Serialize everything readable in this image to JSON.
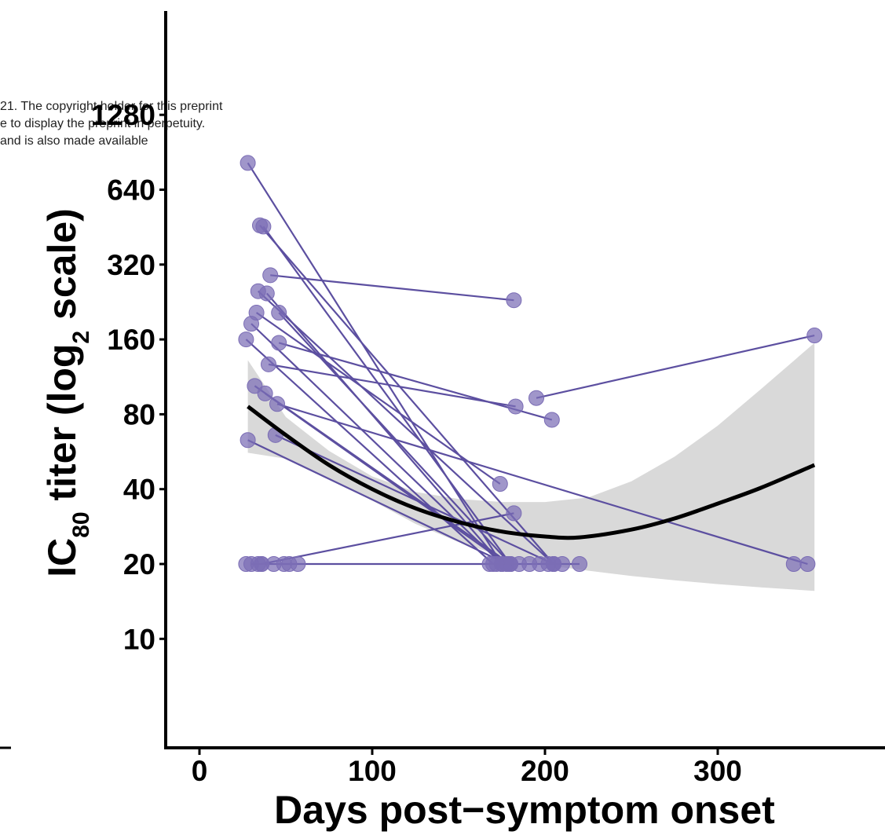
{
  "chart_data": {
    "type": "scatter",
    "xlabel": "Days post−symptom onset",
    "ylabel": {
      "prefix": "IC",
      "prefix_sub": "80",
      "middle": " titer (log",
      "middle_sub": "2",
      "suffix": " scale)"
    },
    "x_scale": "linear",
    "y_scale": "log2",
    "xlim": [
      -20,
      395
    ],
    "ylim": [
      5,
      1500
    ],
    "x_ticks": [
      0,
      100,
      200,
      300
    ],
    "y_ticks": [
      10,
      20,
      40,
      80,
      160,
      320,
      640,
      1280
    ],
    "x_tick_labels": [
      "0",
      "100",
      "200",
      "300"
    ],
    "y_tick_labels": [
      "10",
      "20",
      "40",
      "80",
      "160",
      "320",
      "640",
      "1280"
    ],
    "grid": false,
    "colors": {
      "points": "#7b6db5",
      "lines": "#5c4fa0",
      "fit": "#000000",
      "ribbon": "#d9d9d9"
    },
    "pairs": [
      [
        [
          28,
          820
        ],
        [
          175,
          20
        ]
      ],
      [
        [
          35,
          460
        ],
        [
          205,
          20
        ]
      ],
      [
        [
          37,
          455
        ],
        [
          180,
          20
        ]
      ],
      [
        [
          41,
          290
        ],
        [
          182,
          230
        ]
      ],
      [
        [
          34,
          250
        ],
        [
          205,
          20
        ]
      ],
      [
        [
          39,
          245
        ],
        [
          175,
          20
        ]
      ],
      [
        [
          30,
          185
        ],
        [
          175,
          20
        ]
      ],
      [
        [
          33,
          205
        ],
        [
          174,
          42
        ]
      ],
      [
        [
          46,
          205
        ],
        [
          180,
          20
        ]
      ],
      [
        [
          27,
          160
        ],
        [
          170,
          20
        ]
      ],
      [
        [
          46,
          155
        ],
        [
          204,
          76
        ]
      ],
      [
        [
          40,
          127
        ],
        [
          183,
          86
        ]
      ],
      [
        [
          32,
          104
        ],
        [
          180,
          20
        ]
      ],
      [
        [
          38,
          97
        ],
        [
          178,
          20
        ]
      ],
      [
        [
          45,
          88
        ],
        [
          352,
          20
        ]
      ],
      [
        [
          28,
          63
        ],
        [
          178,
          20
        ]
      ],
      [
        [
          44,
          66
        ],
        [
          205,
          20
        ]
      ],
      [
        [
          36,
          20
        ],
        [
          182,
          32
        ]
      ],
      [
        [
          30,
          20
        ],
        [
          220,
          20
        ]
      ],
      [
        [
          195,
          93
        ],
        [
          356,
          166
        ]
      ]
    ],
    "extra_points": [
      [
        27,
        20
      ],
      [
        34,
        20
      ],
      [
        36,
        20
      ],
      [
        43,
        20
      ],
      [
        49,
        20
      ],
      [
        52,
        20
      ],
      [
        57,
        20
      ],
      [
        168,
        20
      ],
      [
        172,
        20
      ],
      [
        185,
        20
      ],
      [
        191,
        20
      ],
      [
        197,
        20
      ],
      [
        202,
        20
      ],
      [
        210,
        20
      ],
      [
        344,
        20
      ]
    ],
    "fit_curve": {
      "x": [
        28,
        50,
        75,
        100,
        125,
        150,
        175,
        200,
        220,
        250,
        275,
        300,
        325,
        356
      ],
      "y": [
        86,
        66,
        50,
        40,
        33.5,
        29.5,
        27,
        25.8,
        25.6,
        27.5,
        30.5,
        35,
        40.5,
        50
      ]
    },
    "confidence_band": {
      "x": [
        28,
        50,
        75,
        100,
        125,
        150,
        175,
        200,
        225,
        250,
        275,
        300,
        325,
        356
      ],
      "upper": [
        132,
        78,
        57,
        45,
        39,
        36.5,
        35.5,
        35.5,
        37,
        43,
        54,
        72,
        101,
        155
      ],
      "lower": [
        56,
        53,
        44,
        36,
        29,
        24.5,
        21.5,
        19.8,
        18.8,
        17.9,
        17.2,
        16.6,
        16.1,
        15.6
      ]
    }
  },
  "watermark": {
    "line1": "21. The copyright holder for this preprint",
    "line2": "e to display the preprint in perpetuity.",
    "line3": " and is also made available"
  }
}
